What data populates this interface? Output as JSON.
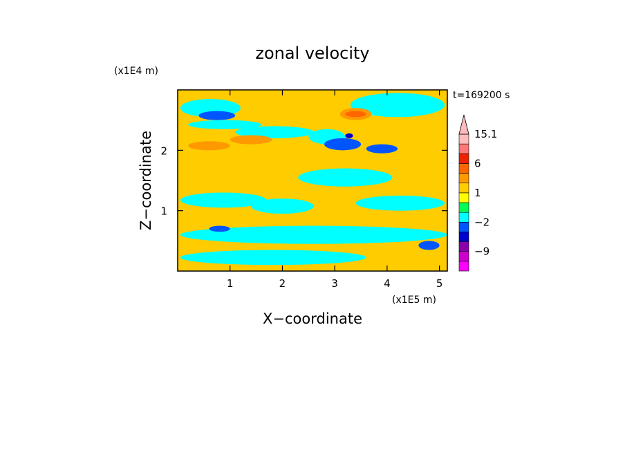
{
  "chart_data": {
    "type": "heatmap",
    "title": "zonal velocity",
    "xlabel": "X−coordinate",
    "ylabel": "Z−coordinate",
    "x_scale_label": "(x1E5 m)",
    "y_scale_label": "(x1E4 m)",
    "time_label": "t=169200 s",
    "xlim": [
      0,
      5.15
    ],
    "ylim": [
      0,
      3.0
    ],
    "x_ticks": [
      1,
      2,
      3,
      4,
      5
    ],
    "x_tick_labels": [
      "1",
      "2",
      "3",
      "4",
      "5"
    ],
    "y_ticks": [
      1,
      2
    ],
    "y_tick_labels": [
      "1",
      "2"
    ],
    "colorbar": {
      "levels": [
        -15.1,
        -12,
        -9,
        -6,
        -3,
        -2,
        -1,
        0,
        1,
        2,
        3,
        6,
        9,
        12,
        15.1
      ],
      "colors": [
        "#ff00ff",
        "#cc00cc",
        "#8800aa",
        "#0000cc",
        "#0055ff",
        "#00ffff",
        "#00ff55",
        "#ffff00",
        "#ffcc00",
        "#ff9900",
        "#ff6600",
        "#ee2200",
        "#ff7777",
        "#ffbbbb"
      ],
      "labels": [
        "15.1",
        "6",
        "1",
        "−2",
        "−9"
      ],
      "label_values": [
        15.1,
        6,
        1,
        -2,
        -9
      ],
      "extend": "max"
    },
    "dominant_colors": {
      "yellow": "#ffff00",
      "green": "#00ff55",
      "cyan": "#00ffff",
      "orange": "#ffcc00",
      "dark_orange": "#ff9900",
      "blue": "#0000cc"
    },
    "regions": [
      {
        "value": 1.5,
        "x": [
          0,
          5.15
        ],
        "z": [
          0,
          3.0
        ]
      },
      {
        "value": -1.5,
        "x": [
          0.05,
          1.2
        ],
        "z": [
          2.55,
          2.85
        ]
      },
      {
        "value": -1.5,
        "x": [
          0.2,
          1.6
        ],
        "z": [
          2.35,
          2.5
        ]
      },
      {
        "value": -1.5,
        "x": [
          1.1,
          2.6
        ],
        "z": [
          2.2,
          2.4
        ]
      },
      {
        "value": -1.5,
        "x": [
          2.5,
          3.2
        ],
        "z": [
          2.1,
          2.35
        ]
      },
      {
        "value": -1.5,
        "x": [
          3.3,
          5.1
        ],
        "z": [
          2.55,
          2.95
        ]
      },
      {
        "value": -1.5,
        "x": [
          2.3,
          4.1
        ],
        "z": [
          1.4,
          1.7
        ]
      },
      {
        "value": -1.5,
        "x": [
          0.05,
          1.7
        ],
        "z": [
          1.05,
          1.3
        ]
      },
      {
        "value": -1.5,
        "x": [
          1.4,
          2.6
        ],
        "z": [
          0.95,
          1.2
        ]
      },
      {
        "value": -1.5,
        "x": [
          3.4,
          5.1
        ],
        "z": [
          1.0,
          1.25
        ]
      },
      {
        "value": -1.5,
        "x": [
          0.05,
          5.15
        ],
        "z": [
          0.45,
          0.75
        ]
      },
      {
        "value": -1.5,
        "x": [
          0.05,
          3.6
        ],
        "z": [
          0.1,
          0.35
        ]
      },
      {
        "value": -2.5,
        "x": [
          0.4,
          1.1
        ],
        "z": [
          2.5,
          2.65
        ]
      },
      {
        "value": -2.5,
        "x": [
          2.8,
          3.5
        ],
        "z": [
          2.0,
          2.2
        ]
      },
      {
        "value": -2.5,
        "x": [
          3.6,
          4.2
        ],
        "z": [
          1.95,
          2.1
        ]
      },
      {
        "value": -2.5,
        "x": [
          0.6,
          1.0
        ],
        "z": [
          0.65,
          0.75
        ]
      },
      {
        "value": -2.5,
        "x": [
          4.6,
          5.0
        ],
        "z": [
          0.35,
          0.5
        ]
      },
      {
        "value": -5,
        "x": [
          3.2,
          3.35
        ],
        "z": [
          2.2,
          2.28
        ]
      },
      {
        "value": 2.5,
        "x": [
          0.2,
          1.0
        ],
        "z": [
          2.0,
          2.15
        ]
      },
      {
        "value": 2.5,
        "x": [
          1.0,
          1.8
        ],
        "z": [
          2.1,
          2.25
        ]
      },
      {
        "value": 2.5,
        "x": [
          3.1,
          3.7
        ],
        "z": [
          2.5,
          2.7
        ]
      },
      {
        "value": 4.5,
        "x": [
          3.2,
          3.6
        ],
        "z": [
          2.55,
          2.65
        ]
      }
    ]
  }
}
